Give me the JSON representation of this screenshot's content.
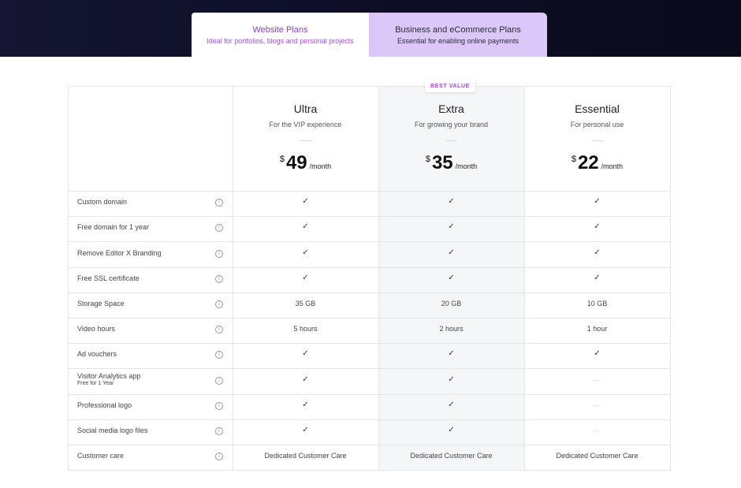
{
  "tabs": [
    {
      "title": "Website Plans",
      "subtitle": "Ideal for portfolios, blogs and personal projects",
      "active": true
    },
    {
      "title": "Business and eCommerce Plans",
      "subtitle": "Essential for enabling online payments",
      "active": false
    }
  ],
  "badge": "BEST VALUE",
  "plans": [
    {
      "name": "Ultra",
      "desc": "For the VIP experience",
      "currency": "$",
      "price": "49",
      "period": "/month"
    },
    {
      "name": "Extra",
      "desc": "For growing your brand",
      "currency": "$",
      "price": "35",
      "period": "/month"
    },
    {
      "name": "Essential",
      "desc": "For personal use",
      "currency": "$",
      "price": "22",
      "period": "/month"
    }
  ],
  "features": [
    {
      "label": "Custom domain",
      "values": [
        "check",
        "check",
        "check"
      ]
    },
    {
      "label": "Free domain for 1 year",
      "values": [
        "check",
        "check",
        "check"
      ]
    },
    {
      "label": "Remove Editor X Branding",
      "values": [
        "check",
        "check",
        "check"
      ]
    },
    {
      "label": "Free SSL certificate",
      "values": [
        "check",
        "check",
        "check"
      ]
    },
    {
      "label": "Storage Space",
      "values": [
        "35 GB",
        "20 GB",
        "10 GB"
      ]
    },
    {
      "label": "Video hours",
      "values": [
        "5 hours",
        "2 hours",
        "1 hour"
      ]
    },
    {
      "label": "Ad vouchers",
      "values": [
        "check",
        "check",
        "check"
      ]
    },
    {
      "label": "Visitor Analytics app",
      "sublabel": "Free for 1 Year",
      "values": [
        "check",
        "check",
        "none"
      ]
    },
    {
      "label": "Professional logo",
      "values": [
        "check",
        "check",
        "none"
      ]
    },
    {
      "label": "Social media logo files",
      "values": [
        "check",
        "check",
        "none"
      ]
    },
    {
      "label": "Customer care",
      "values": [
        "Dedicated Customer Care",
        "Dedicated Customer Care",
        "Dedicated Customer Care"
      ]
    }
  ],
  "icons": {
    "check": "check-icon",
    "none": "dash-icon",
    "info": "info-icon"
  },
  "colors": {
    "header": "#0d0d25",
    "accent": "#8a3fc7",
    "active_tab": "#ffffff",
    "inactive_tab": "#dcc8f8",
    "highlight_column": "#f5f6f8"
  }
}
